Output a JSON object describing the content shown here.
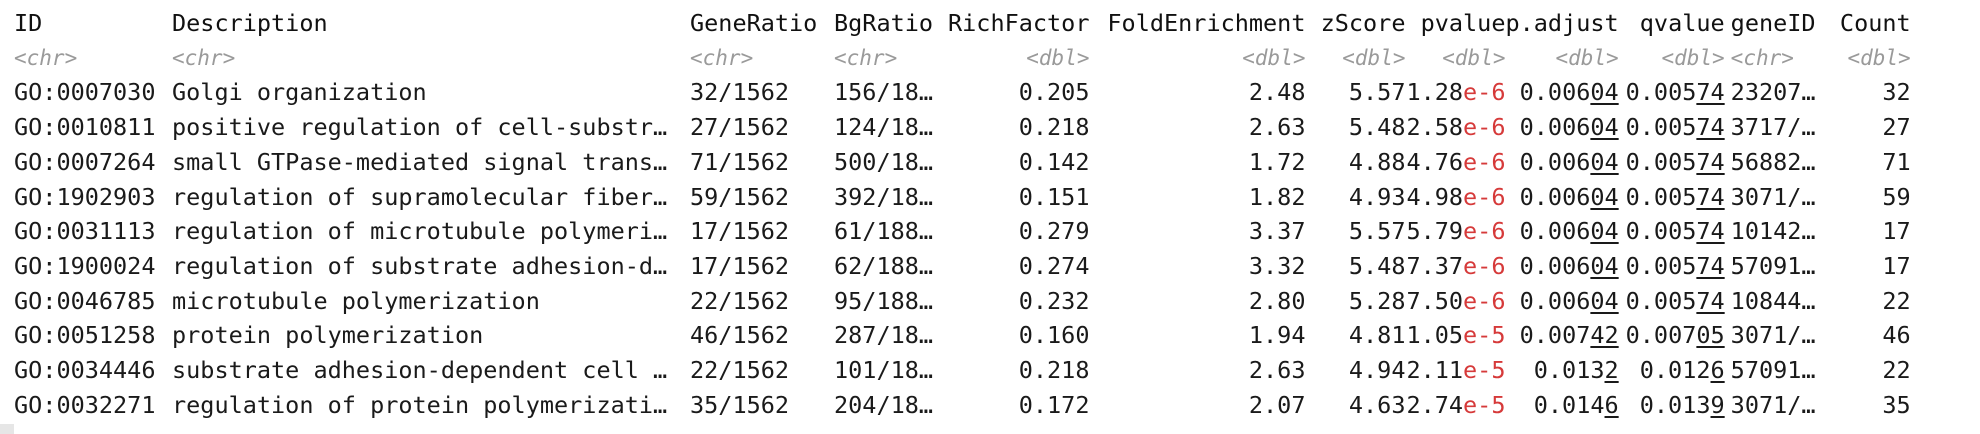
{
  "columns": [
    {
      "key": "id",
      "label": "ID",
      "type": "<chr>"
    },
    {
      "key": "desc",
      "label": "Description",
      "type": "<chr>"
    },
    {
      "key": "gr",
      "label": "GeneRatio",
      "type": "<chr>"
    },
    {
      "key": "bg",
      "label": "BgRatio",
      "type": "<chr>"
    },
    {
      "key": "rf",
      "label": "RichFactor",
      "type": "<dbl>"
    },
    {
      "key": "fe",
      "label": "FoldEnrichment",
      "type": "<dbl>"
    },
    {
      "key": "z",
      "label": "zScore",
      "type": "<dbl>"
    },
    {
      "key": "p",
      "label": "pvalue",
      "type": "<dbl>"
    },
    {
      "key": "adj",
      "label": "p.adjust",
      "type": "<dbl>"
    },
    {
      "key": "q",
      "label": "qvalue",
      "type": "<dbl>"
    },
    {
      "key": "gid",
      "label": "geneID",
      "type": "<chr>"
    },
    {
      "key": "cnt",
      "label": "Count",
      "type": "<dbl>"
    }
  ],
  "rows": [
    {
      "id": "GO:0007030",
      "desc": "Golgi organization",
      "gr": "32/1562",
      "bg": "156/18…",
      "rf": "0.205",
      "fe": "2.48",
      "z": "5.57",
      "p_m": "1.28",
      "p_e": "e-6",
      "adj_a": "0.006",
      "adj_b": "04",
      "q_a": "0.005",
      "q_b": "74",
      "gid": "23207…",
      "cnt": "32"
    },
    {
      "id": "GO:0010811",
      "desc": "positive regulation of cell-substr…",
      "gr": "27/1562",
      "bg": "124/18…",
      "rf": "0.218",
      "fe": "2.63",
      "z": "5.48",
      "p_m": "2.58",
      "p_e": "e-6",
      "adj_a": "0.006",
      "adj_b": "04",
      "q_a": "0.005",
      "q_b": "74",
      "gid": "3717/…",
      "cnt": "27"
    },
    {
      "id": "GO:0007264",
      "desc": "small GTPase-mediated signal trans…",
      "gr": "71/1562",
      "bg": "500/18…",
      "rf": "0.142",
      "fe": "1.72",
      "z": "4.88",
      "p_m": "4.76",
      "p_e": "e-6",
      "adj_a": "0.006",
      "adj_b": "04",
      "q_a": "0.005",
      "q_b": "74",
      "gid": "56882…",
      "cnt": "71"
    },
    {
      "id": "GO:1902903",
      "desc": "regulation of supramolecular fiber…",
      "gr": "59/1562",
      "bg": "392/18…",
      "rf": "0.151",
      "fe": "1.82",
      "z": "4.93",
      "p_m": "4.98",
      "p_e": "e-6",
      "adj_a": "0.006",
      "adj_b": "04",
      "q_a": "0.005",
      "q_b": "74",
      "gid": "3071/…",
      "cnt": "59"
    },
    {
      "id": "GO:0031113",
      "desc": "regulation of microtubule polymeri…",
      "gr": "17/1562",
      "bg": "61/188…",
      "rf": "0.279",
      "fe": "3.37",
      "z": "5.57",
      "p_m": "5.79",
      "p_e": "e-6",
      "adj_a": "0.006",
      "adj_b": "04",
      "q_a": "0.005",
      "q_b": "74",
      "gid": "10142…",
      "cnt": "17"
    },
    {
      "id": "GO:1900024",
      "desc": "regulation of substrate adhesion-d…",
      "gr": "17/1562",
      "bg": "62/188…",
      "rf": "0.274",
      "fe": "3.32",
      "z": "5.48",
      "p_m": "7.37",
      "p_e": "e-6",
      "adj_a": "0.006",
      "adj_b": "04",
      "q_a": "0.005",
      "q_b": "74",
      "gid": "57091…",
      "cnt": "17"
    },
    {
      "id": "GO:0046785",
      "desc": "microtubule polymerization",
      "gr": "22/1562",
      "bg": "95/188…",
      "rf": "0.232",
      "fe": "2.80",
      "z": "5.28",
      "p_m": "7.50",
      "p_e": "e-6",
      "adj_a": "0.006",
      "adj_b": "04",
      "q_a": "0.005",
      "q_b": "74",
      "gid": "10844…",
      "cnt": "22"
    },
    {
      "id": "GO:0051258",
      "desc": "protein polymerization",
      "gr": "46/1562",
      "bg": "287/18…",
      "rf": "0.160",
      "fe": "1.94",
      "z": "4.81",
      "p_m": "1.05",
      "p_e": "e-5",
      "adj_a": "0.007",
      "adj_b": "42",
      "q_a": "0.007",
      "q_b": "05",
      "gid": "3071/…",
      "cnt": "46"
    },
    {
      "id": "GO:0034446",
      "desc": "substrate adhesion-dependent cell …",
      "gr": "22/1562",
      "bg": "101/18…",
      "rf": "0.218",
      "fe": "2.63",
      "z": "4.94",
      "p_m": "2.11",
      "p_e": "e-5",
      "adj_a": "0.013",
      "adj_b": "2",
      "q_a": "0.012",
      "q_b": "6",
      "gid": "57091…",
      "cnt": "22"
    },
    {
      "id": "GO:0032271",
      "desc": "regulation of protein polymerizati…",
      "gr": "35/1562",
      "bg": "204/18…",
      "rf": "0.172",
      "fe": "2.07",
      "z": "4.63",
      "p_m": "2.74",
      "p_e": "e-5",
      "adj_a": "0.014",
      "adj_b": "6",
      "q_a": "0.013",
      "q_b": "9",
      "gid": "3071/…",
      "cnt": "35"
    }
  ],
  "colors": {
    "text": "#1a1a1a",
    "type_annotation": "#9a9a9a",
    "exponent": "#d63a3a"
  }
}
